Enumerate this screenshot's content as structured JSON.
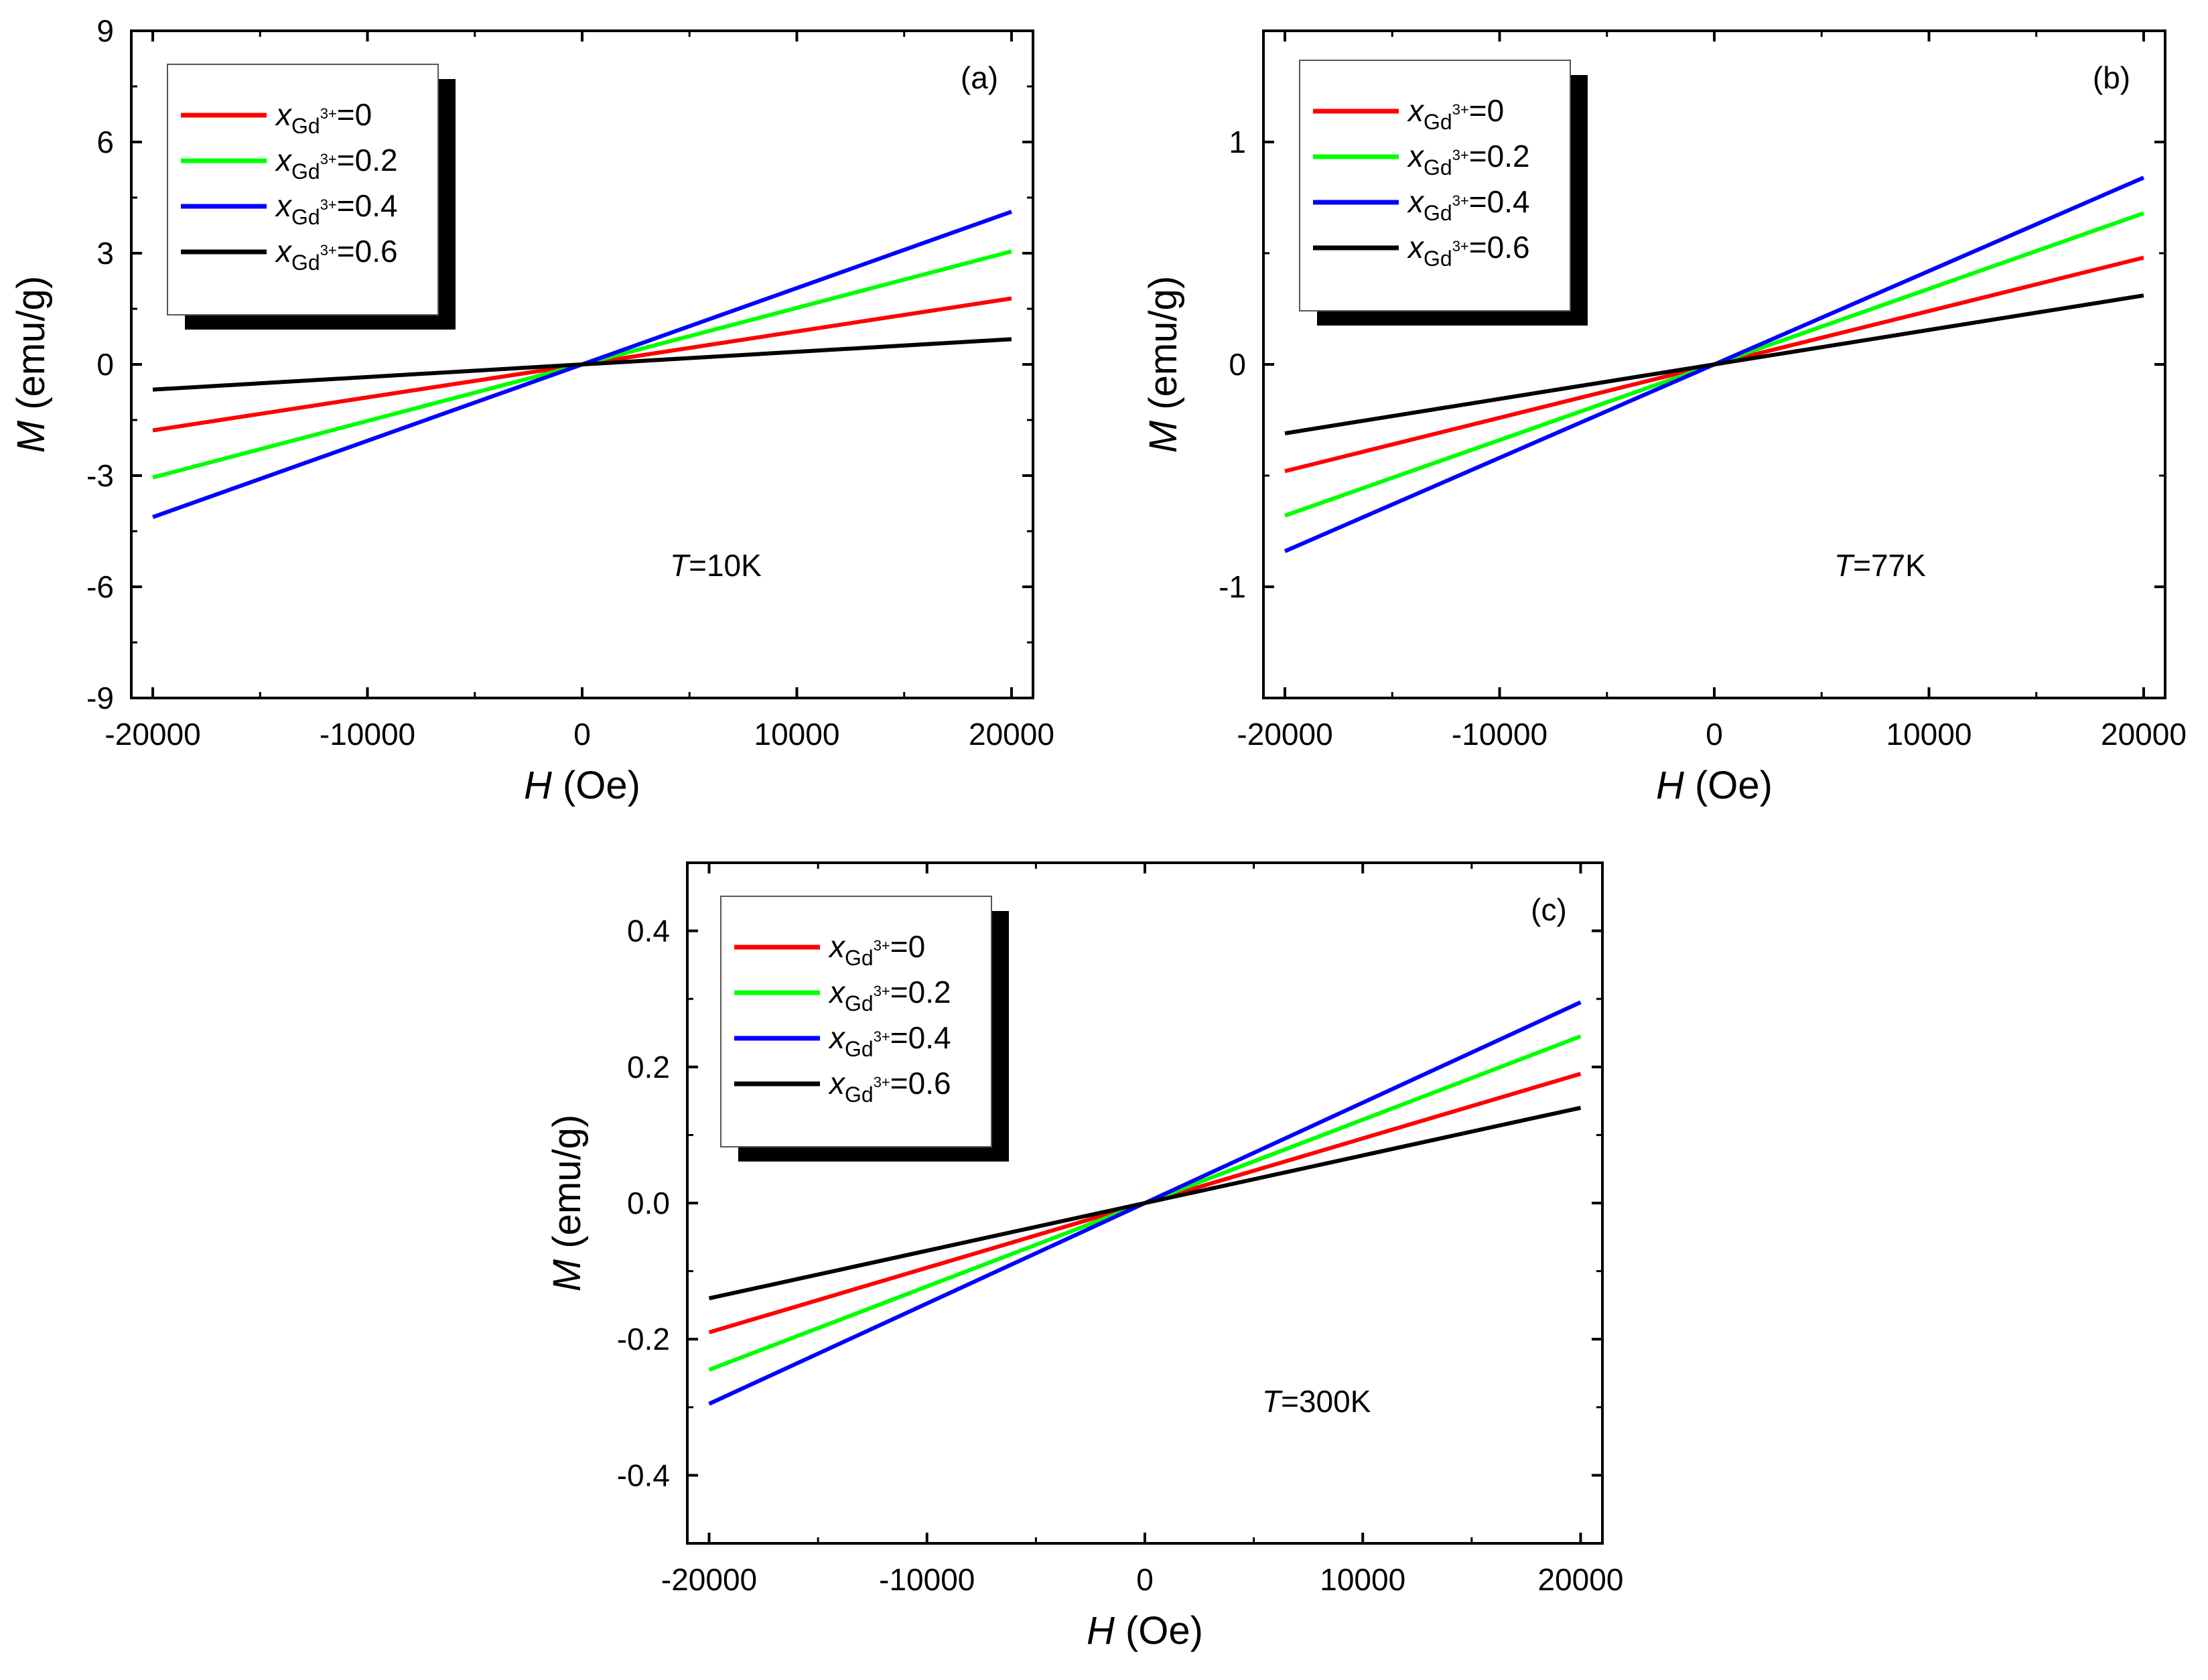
{
  "chart_data": [
    {
      "type": "line",
      "panel": "(a)",
      "annotation_label": "T",
      "annotation_value": "=10K",
      "xlabel_var": "H",
      "xlabel_unit": " (Oe)",
      "ylabel_var": "M",
      "ylabel_unit": " (emu/g)",
      "xlim": [
        -21000,
        21000
      ],
      "ylim": [
        -9,
        9
      ],
      "xticks": [
        -20000,
        -10000,
        0,
        10000,
        20000
      ],
      "yticks": [
        -9,
        -6,
        -3,
        0,
        3,
        6,
        9
      ],
      "ytick_labels": [
        "-9",
        "-6",
        "-3",
        "0",
        "3",
        "6",
        "9"
      ],
      "legend_position": "top-left",
      "series": [
        {
          "name": "x_Gd3+=0",
          "var": "x",
          "sub": "Gd",
          "sup": "3+",
          "value_text": "=0",
          "color": "#ff0000",
          "x": [
            -20000,
            20000
          ],
          "y": [
            -1.78,
            1.78
          ]
        },
        {
          "name": "x_Gd3+=0.2",
          "var": "x",
          "sub": "Gd",
          "sup": "3+",
          "value_text": "=0.2",
          "color": "#00ff00",
          "x": [
            -20000,
            20000
          ],
          "y": [
            -3.05,
            3.05
          ]
        },
        {
          "name": "x_Gd3+=0.4",
          "var": "x",
          "sub": "Gd",
          "sup": "3+",
          "value_text": "=0.4",
          "color": "#0000ff",
          "x": [
            -20000,
            20000
          ],
          "y": [
            -4.12,
            4.12
          ]
        },
        {
          "name": "x_Gd3+=0.6",
          "var": "x",
          "sub": "Gd",
          "sup": "3+",
          "value_text": "=0.6",
          "color": "#000000",
          "x": [
            -20000,
            20000
          ],
          "y": [
            -0.68,
            0.68
          ]
        }
      ]
    },
    {
      "type": "line",
      "panel": "(b)",
      "annotation_label": "T",
      "annotation_value": "=77K",
      "xlabel_var": "H",
      "xlabel_unit": " (Oe)",
      "ylabel_var": "M",
      "ylabel_unit": " (emu/g)",
      "xlim": [
        -21000,
        21000
      ],
      "ylim": [
        -1.5,
        1.5
      ],
      "xticks": [
        -20000,
        -10000,
        0,
        10000,
        20000
      ],
      "yticks": [
        -1,
        0,
        1
      ],
      "ytick_labels": [
        "-1",
        "0",
        "1"
      ],
      "legend_position": "top-left",
      "series": [
        {
          "name": "x_Gd3+=0",
          "var": "x",
          "sub": "Gd",
          "sup": "3+",
          "value_text": "=0",
          "color": "#ff0000",
          "x": [
            -20000,
            20000
          ],
          "y": [
            -0.48,
            0.48
          ]
        },
        {
          "name": "x_Gd3+=0.2",
          "var": "x",
          "sub": "Gd",
          "sup": "3+",
          "value_text": "=0.2",
          "color": "#00ff00",
          "x": [
            -20000,
            20000
          ],
          "y": [
            -0.68,
            0.68
          ]
        },
        {
          "name": "x_Gd3+=0.4",
          "var": "x",
          "sub": "Gd",
          "sup": "3+",
          "value_text": "=0.4",
          "color": "#0000ff",
          "x": [
            -20000,
            20000
          ],
          "y": [
            -0.84,
            0.84
          ]
        },
        {
          "name": "x_Gd3+=0.6",
          "var": "x",
          "sub": "Gd",
          "sup": "3+",
          "value_text": "=0.6",
          "color": "#000000",
          "x": [
            -20000,
            20000
          ],
          "y": [
            -0.31,
            0.31
          ]
        }
      ]
    },
    {
      "type": "line",
      "panel": "(c)",
      "annotation_label": "T",
      "annotation_value": "=300K",
      "xlabel_var": "H",
      "xlabel_unit": " (Oe)",
      "ylabel_var": "M",
      "ylabel_unit": " (emu/g)",
      "xlim": [
        -21000,
        21000
      ],
      "ylim": [
        -0.5,
        0.5
      ],
      "xticks": [
        -20000,
        -10000,
        0,
        10000,
        20000
      ],
      "yticks": [
        -0.4,
        -0.2,
        0.0,
        0.2,
        0.4
      ],
      "ytick_labels": [
        "-0.4",
        "-0.2",
        "0.0",
        "0.2",
        "0.4"
      ],
      "legend_position": "top-left",
      "series": [
        {
          "name": "x_Gd3+=0",
          "var": "x",
          "sub": "Gd",
          "sup": "3+",
          "value_text": "=0",
          "color": "#ff0000",
          "x": [
            -20000,
            20000
          ],
          "y": [
            -0.19,
            0.19
          ]
        },
        {
          "name": "x_Gd3+=0.2",
          "var": "x",
          "sub": "Gd",
          "sup": "3+",
          "value_text": "=0.2",
          "color": "#00ff00",
          "x": [
            -20000,
            20000
          ],
          "y": [
            -0.245,
            0.245
          ]
        },
        {
          "name": "x_Gd3+=0.4",
          "var": "x",
          "sub": "Gd",
          "sup": "3+",
          "value_text": "=0.4",
          "color": "#0000ff",
          "x": [
            -20000,
            20000
          ],
          "y": [
            -0.295,
            0.295
          ]
        },
        {
          "name": "x_Gd3+=0.6",
          "var": "x",
          "sub": "Gd",
          "sup": "3+",
          "value_text": "=0.6",
          "color": "#000000",
          "x": [
            -20000,
            20000
          ],
          "y": [
            -0.14,
            0.14
          ]
        }
      ]
    }
  ]
}
